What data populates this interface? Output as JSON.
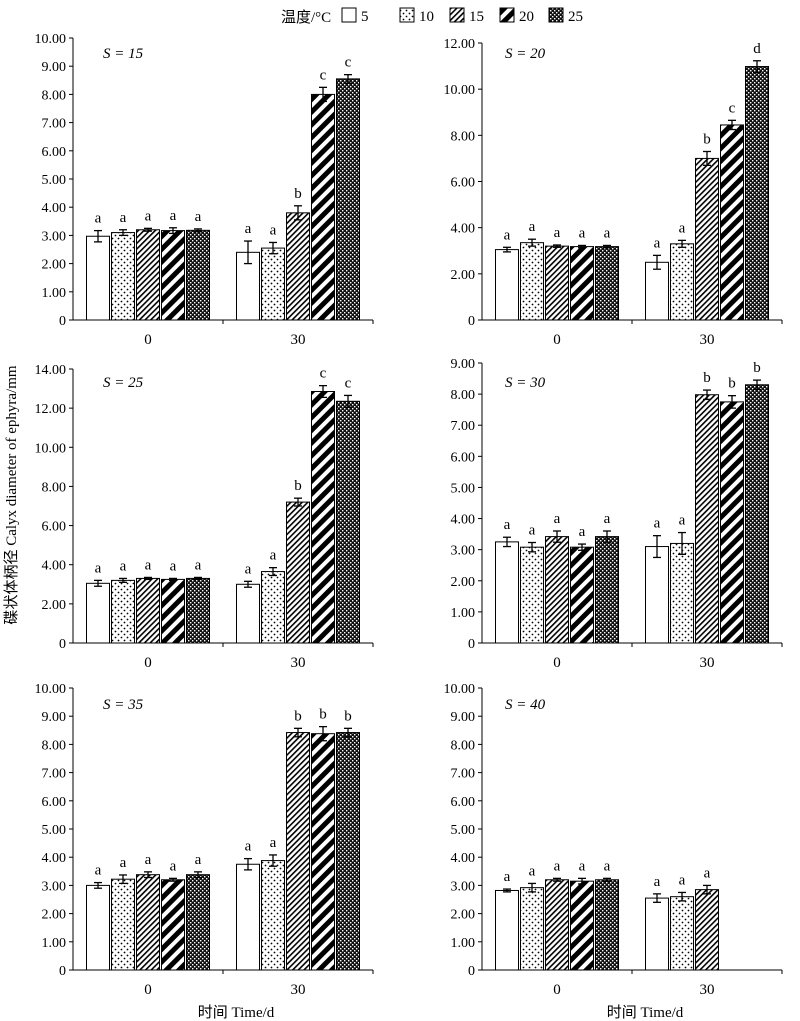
{
  "legend": {
    "title": "温度/°C",
    "items": [
      {
        "label": "5",
        "pattern": "open"
      },
      {
        "label": "10",
        "pattern": "dots"
      },
      {
        "label": "15",
        "pattern": "dense-diagonal"
      },
      {
        "label": "20",
        "pattern": "wide-diagonal"
      },
      {
        "label": "25",
        "pattern": "dark-checker"
      }
    ]
  },
  "y_axis_label": "碟状体柄径 Calyx diameter of ephyra/mm",
  "x_axis_label": "时间 Time/d",
  "chart_data": [
    {
      "type": "bar",
      "panel_label": "S = 15",
      "categories": [
        "0",
        "30"
      ],
      "ylim": [
        0,
        10
      ],
      "yticks": [
        "0",
        "1.00",
        "2.00",
        "3.00",
        "4.00",
        "5.00",
        "6.00",
        "7.00",
        "8.00",
        "9.00",
        "10.00"
      ],
      "series": [
        {
          "name": "5",
          "values": [
            2.97,
            2.4
          ],
          "errors": [
            0.2,
            0.4
          ],
          "letters": [
            "a",
            "a"
          ]
        },
        {
          "name": "10",
          "values": [
            3.1,
            2.55
          ],
          "errors": [
            0.1,
            0.2
          ],
          "letters": [
            "a",
            "a"
          ]
        },
        {
          "name": "15",
          "values": [
            3.2,
            3.8
          ],
          "errors": [
            0.05,
            0.25
          ],
          "letters": [
            "a",
            "b"
          ]
        },
        {
          "name": "20",
          "values": [
            3.17,
            8.0
          ],
          "errors": [
            0.1,
            0.25
          ],
          "letters": [
            "a",
            "c"
          ]
        },
        {
          "name": "25",
          "values": [
            3.18,
            8.55
          ],
          "errors": [
            0.05,
            0.15
          ],
          "letters": [
            "a",
            "c"
          ]
        }
      ]
    },
    {
      "type": "bar",
      "panel_label": "S = 20",
      "categories": [
        "0",
        "30"
      ],
      "ylim": [
        0,
        12
      ],
      "yticks": [
        "0",
        "2.00",
        "4.00",
        "6.00",
        "8.00",
        "10.00",
        "12.00"
      ],
      "series": [
        {
          "name": "5",
          "values": [
            3.05,
            2.5
          ],
          "errors": [
            0.1,
            0.3
          ],
          "letters": [
            "a",
            "a"
          ]
        },
        {
          "name": "10",
          "values": [
            3.35,
            3.3
          ],
          "errors": [
            0.15,
            0.15
          ],
          "letters": [
            "a",
            "a"
          ]
        },
        {
          "name": "15",
          "values": [
            3.2,
            7.0
          ],
          "errors": [
            0.05,
            0.3
          ],
          "letters": [
            "a",
            "b"
          ]
        },
        {
          "name": "20",
          "values": [
            3.18,
            8.45
          ],
          "errors": [
            0.05,
            0.2
          ],
          "letters": [
            "a",
            "c"
          ]
        },
        {
          "name": "25",
          "values": [
            3.18,
            10.98
          ],
          "errors": [
            0.05,
            0.25
          ],
          "letters": [
            "a",
            "d"
          ]
        }
      ]
    },
    {
      "type": "bar",
      "panel_label": "S = 25",
      "categories": [
        "0",
        "30"
      ],
      "ylim": [
        0,
        14
      ],
      "yticks": [
        "0",
        "2.00",
        "4.00",
        "6.00",
        "8.00",
        "10.00",
        "12.00",
        "14.00"
      ],
      "series": [
        {
          "name": "5",
          "values": [
            3.05,
            3.0
          ],
          "errors": [
            0.15,
            0.15
          ],
          "letters": [
            "a",
            "a"
          ]
        },
        {
          "name": "10",
          "values": [
            3.2,
            3.65
          ],
          "errors": [
            0.1,
            0.2
          ],
          "letters": [
            "a",
            "a"
          ]
        },
        {
          "name": "15",
          "values": [
            3.3,
            7.2
          ],
          "errors": [
            0.05,
            0.2
          ],
          "letters": [
            "a",
            "b"
          ]
        },
        {
          "name": "20",
          "values": [
            3.25,
            12.85
          ],
          "errors": [
            0.05,
            0.3
          ],
          "letters": [
            "a",
            "c"
          ]
        },
        {
          "name": "25",
          "values": [
            3.3,
            12.35
          ],
          "errors": [
            0.05,
            0.3
          ],
          "letters": [
            "a",
            "c"
          ]
        }
      ]
    },
    {
      "type": "bar",
      "panel_label": "S = 30",
      "categories": [
        "0",
        "30"
      ],
      "ylim": [
        0,
        9
      ],
      "yticks": [
        "0",
        "1.00",
        "2.00",
        "3.00",
        "4.00",
        "5.00",
        "6.00",
        "7.00",
        "8.00",
        "9.00"
      ],
      "series": [
        {
          "name": "5",
          "values": [
            3.25,
            3.1
          ],
          "errors": [
            0.15,
            0.35
          ],
          "letters": [
            "a",
            "a"
          ]
        },
        {
          "name": "10",
          "values": [
            3.08,
            3.2
          ],
          "errors": [
            0.15,
            0.35
          ],
          "letters": [
            "a",
            "a"
          ]
        },
        {
          "name": "15",
          "values": [
            3.42,
            7.98
          ],
          "errors": [
            0.18,
            0.15
          ],
          "letters": [
            "a",
            "b"
          ]
        },
        {
          "name": "20",
          "values": [
            3.08,
            7.75
          ],
          "errors": [
            0.1,
            0.2
          ],
          "letters": [
            "a",
            "b"
          ]
        },
        {
          "name": "25",
          "values": [
            3.42,
            8.3
          ],
          "errors": [
            0.18,
            0.15
          ],
          "letters": [
            "a",
            "b"
          ]
        }
      ]
    },
    {
      "type": "bar",
      "panel_label": "S = 35",
      "categories": [
        "0",
        "30"
      ],
      "ylim": [
        0,
        10
      ],
      "yticks": [
        "0",
        "1.00",
        "2.00",
        "3.00",
        "4.00",
        "5.00",
        "6.00",
        "7.00",
        "8.00",
        "9.00",
        "10.00"
      ],
      "series": [
        {
          "name": "5",
          "values": [
            3.0,
            3.75
          ],
          "errors": [
            0.1,
            0.2
          ],
          "letters": [
            "a",
            "a"
          ]
        },
        {
          "name": "10",
          "values": [
            3.22,
            3.88
          ],
          "errors": [
            0.15,
            0.2
          ],
          "letters": [
            "a",
            "a"
          ]
        },
        {
          "name": "15",
          "values": [
            3.38,
            8.42
          ],
          "errors": [
            0.1,
            0.15
          ],
          "letters": [
            "a",
            "b"
          ]
        },
        {
          "name": "20",
          "values": [
            3.2,
            8.38
          ],
          "errors": [
            0.05,
            0.25
          ],
          "letters": [
            "a",
            "b"
          ]
        },
        {
          "name": "25",
          "values": [
            3.38,
            8.42
          ],
          "errors": [
            0.1,
            0.15
          ],
          "letters": [
            "a",
            "b"
          ]
        }
      ]
    },
    {
      "type": "bar",
      "panel_label": "S = 40",
      "categories": [
        "0",
        "30"
      ],
      "ylim": [
        0,
        10
      ],
      "yticks": [
        "0",
        "1.00",
        "2.00",
        "3.00",
        "4.00",
        "5.00",
        "6.00",
        "7.00",
        "8.00",
        "9.00",
        "10.00"
      ],
      "series": [
        {
          "name": "5",
          "values": [
            2.82,
            2.55
          ],
          "errors": [
            0.05,
            0.15
          ],
          "letters": [
            "a",
            "a"
          ]
        },
        {
          "name": "10",
          "values": [
            2.92,
            2.6
          ],
          "errors": [
            0.15,
            0.15
          ],
          "letters": [
            "a",
            "a"
          ]
        },
        {
          "name": "15",
          "values": [
            3.2,
            2.85
          ],
          "errors": [
            0.05,
            0.15
          ],
          "letters": [
            "a",
            "a"
          ]
        },
        {
          "name": "20",
          "values": [
            3.15,
            null
          ],
          "errors": [
            0.1,
            null
          ],
          "letters": [
            "a",
            ""
          ]
        },
        {
          "name": "25",
          "values": [
            3.2,
            null
          ],
          "errors": [
            0.05,
            null
          ],
          "letters": [
            "a",
            ""
          ]
        }
      ]
    }
  ]
}
